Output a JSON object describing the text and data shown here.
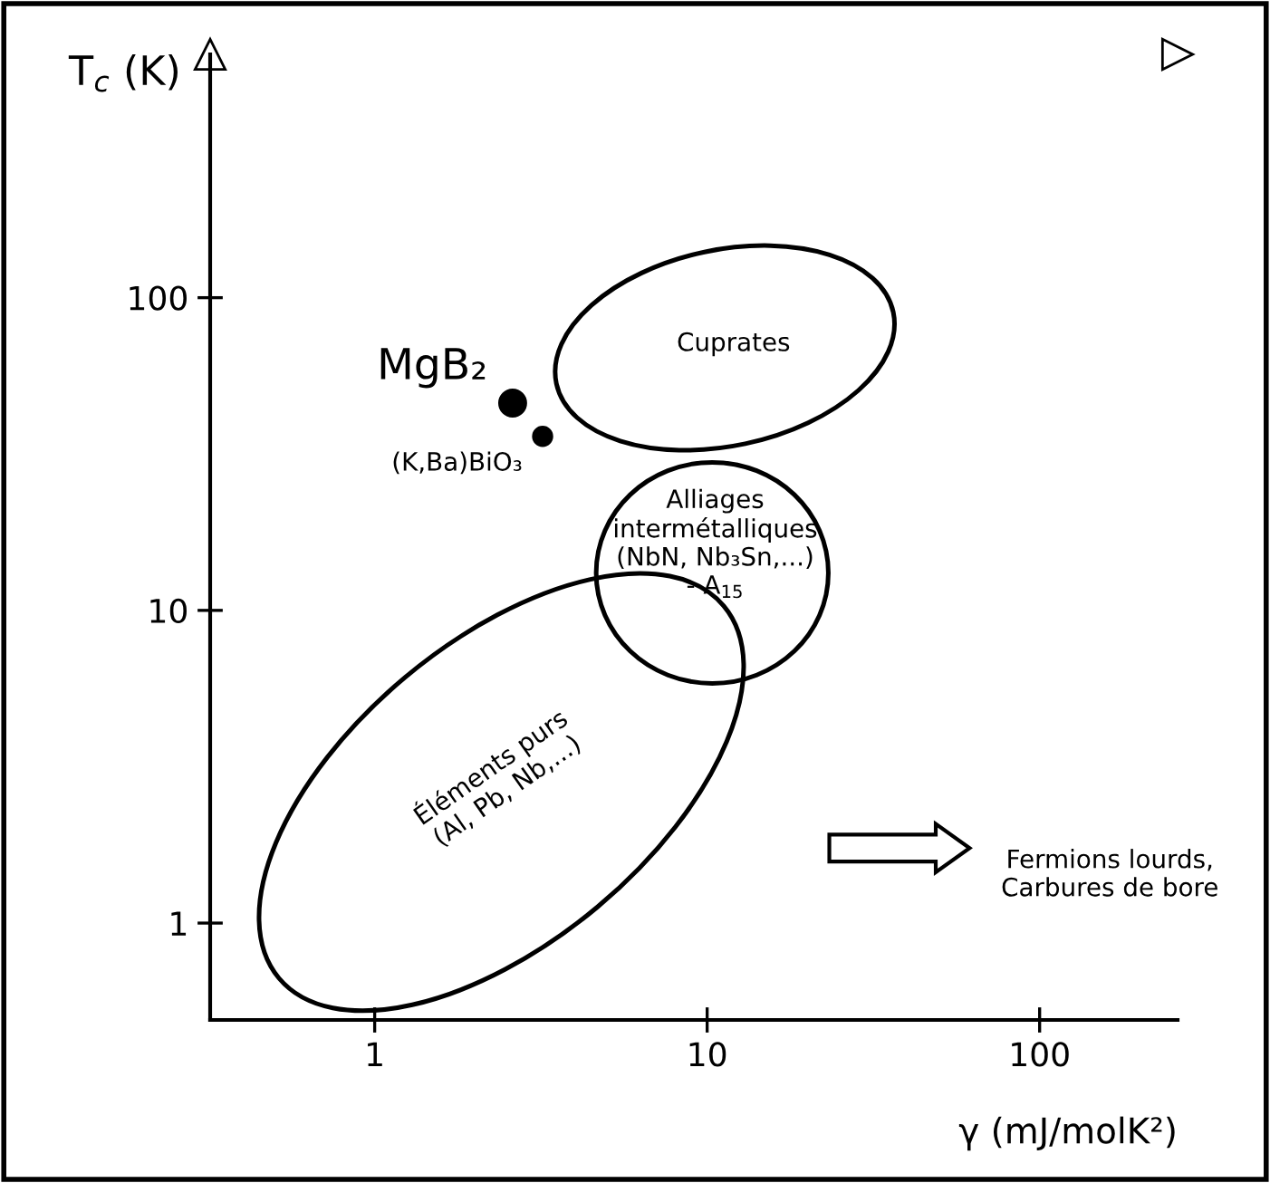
{
  "chart_data": {
    "type": "scatter",
    "xlabel": "γ (mJ/molK²)",
    "ylabel": "T$_{c}$ (K)",
    "log": "xy",
    "xlim": [
      0.32,
      260
    ],
    "ylim": [
      0.49,
      600
    ],
    "xticks": [
      1,
      10,
      100
    ],
    "yticks": [
      1,
      10,
      100
    ],
    "grid": false,
    "legend": false,
    "marker": "circle",
    "series": [
      {
        "name": "MgB₂",
        "color": "#000000",
        "x": [
          2.6
        ],
        "values": [
          46
        ]
      },
      {
        "name": "(K,Ba)BiO₃",
        "color": "#000000",
        "x": [
          3.2
        ],
        "values": [
          36
        ]
      }
    ],
    "annotations": [
      "Cuprates",
      "Alliages\nintermétalliques\n(NbN, Nb₃Sn,...)\n- A$_{15}$",
      "Éléments purs\n(Al, Pb, Nb,...)",
      "Fermions lourds,\nCarbures de bore"
    ]
  }
}
